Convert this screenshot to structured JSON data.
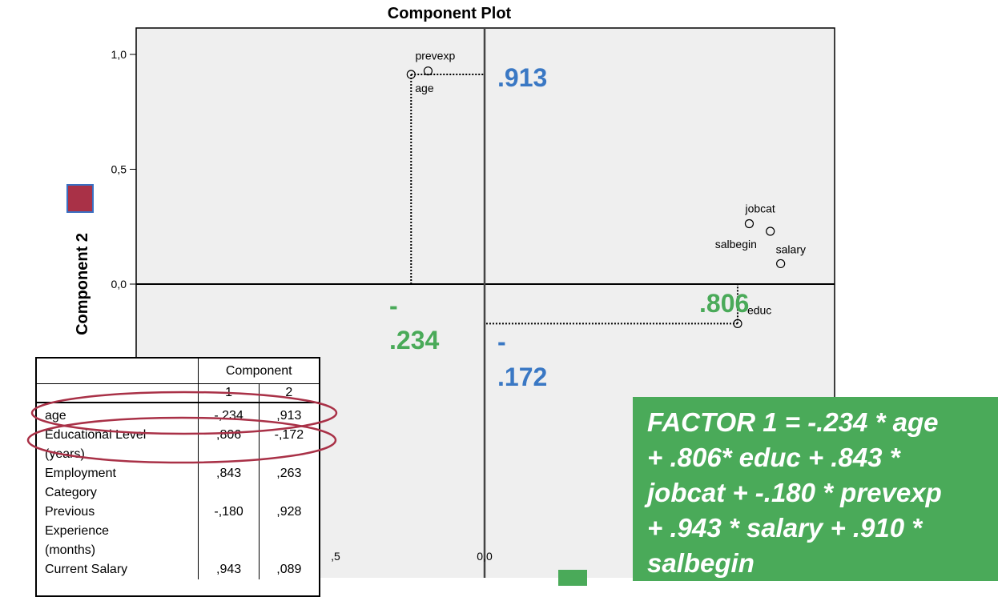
{
  "chart_data": {
    "type": "scatter",
    "title": "Component Plot",
    "ylabel": "Component 2",
    "xlabel": "",
    "xlim": [
      -1.0,
      1.0
    ],
    "ylim": [
      -1.0,
      1.0
    ],
    "yticks": [
      "1,0",
      "0,5",
      "0,0"
    ],
    "xticks": [
      ",5",
      "0,0"
    ],
    "points": [
      {
        "label": "age",
        "x": -0.234,
        "y": 0.913
      },
      {
        "label": "prevexp",
        "x": -0.18,
        "y": 0.928
      },
      {
        "label": "educ",
        "x": 0.806,
        "y": -0.172
      },
      {
        "label": "jobcat",
        "x": 0.843,
        "y": 0.263
      },
      {
        "label": "salbegin",
        "x": 0.91,
        "y": 0.23
      },
      {
        "label": "salary",
        "x": 0.943,
        "y": 0.089
      }
    ],
    "annotations": [
      {
        "text": ".913",
        "color": "#3a78c4"
      },
      {
        "text": "-",
        "color": "#4aaa59"
      },
      {
        "text": ".234",
        "color": "#4aaa59"
      },
      {
        "text": "-",
        "color": "#3a78c4"
      },
      {
        "text": ".172",
        "color": "#3a78c4"
      },
      {
        "text": ".806",
        "color": "#4aaa59"
      }
    ],
    "colors": {
      "plot_bg": "#efefef",
      "component1": "#4aaa59",
      "component2": "#a93147",
      "blue": "#3a78c4"
    }
  },
  "table": {
    "header": "Component",
    "cols": [
      "1",
      "2"
    ],
    "rows": [
      {
        "name": [
          "age"
        ],
        "c1": "-,234",
        "c2": ",913"
      },
      {
        "name": [
          "Educational Level",
          "(years)"
        ],
        "c1": ",806",
        "c2": "-,172"
      },
      {
        "name": [
          "Employment",
          "Category"
        ],
        "c1": ",843",
        "c2": ",263"
      },
      {
        "name": [
          "Previous",
          "Experience",
          "(months)"
        ],
        "c1": "-,180",
        "c2": ",928"
      },
      {
        "name": [
          "Current Salary"
        ],
        "c1": ",943",
        "c2": ",089"
      }
    ]
  },
  "formula": {
    "lines": [
      "FACTOR 1 = -.234 * age",
      "+ .806* educ + .843 *",
      "jobcat + -.180 * prevexp",
      "+ .943 * salary + .910 *",
      "salbegin"
    ]
  }
}
